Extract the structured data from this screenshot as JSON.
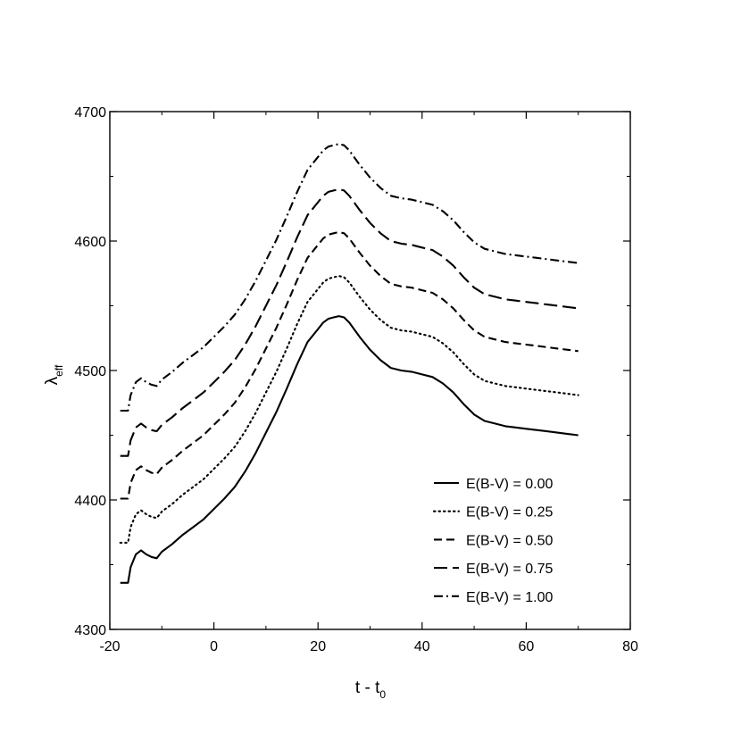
{
  "chart_data": {
    "type": "line",
    "xlabel": "t - t",
    "xlabel_sub": "0",
    "ylabel": "λ",
    "ylabel_sub": "eff",
    "xlim": [
      -20,
      80
    ],
    "ylim": [
      4300,
      4700
    ],
    "xticks": [
      -20,
      0,
      20,
      40,
      60,
      80
    ],
    "yticks": [
      4300,
      4400,
      4500,
      4600,
      4700
    ],
    "grid": false,
    "legend_position": "bottom-right",
    "base_x": [
      -18,
      -16.5,
      -16,
      -15,
      -14,
      -13,
      -12,
      -11,
      -10,
      -8,
      -6,
      -4,
      -2,
      0,
      2,
      4,
      6,
      8,
      10,
      12,
      14,
      16,
      18,
      20,
      21,
      22,
      23,
      24,
      25,
      26,
      28,
      30,
      32,
      34,
      36,
      38,
      40,
      42,
      44,
      46,
      48,
      50,
      52,
      54,
      56,
      58,
      60,
      62,
      64,
      66,
      68,
      70
    ],
    "series": [
      {
        "name": "E(B-V) = 0.00",
        "dash": "solid",
        "offset": 0,
        "values": [
          4336,
          4336,
          4348,
          4358,
          4361,
          4358,
          4356,
          4355,
          4360,
          4366,
          4373,
          4379,
          4385,
          4393,
          4401,
          4410,
          4422,
          4436,
          4452,
          4468,
          4486,
          4505,
          4522,
          4532,
          4537,
          4540,
          4541,
          4542,
          4541,
          4537,
          4526,
          4516,
          4508,
          4502,
          4500,
          4499,
          4497,
          4495,
          4490,
          4483,
          4474,
          4466,
          4461,
          4459,
          4457,
          4456,
          4455,
          4454,
          4453,
          4452,
          4451,
          4450
        ]
      },
      {
        "name": "E(B-V) = 0.25",
        "dash": "dotted",
        "offset": 31
      },
      {
        "name": "E(B-V) = 0.50",
        "dash": "dashed",
        "offset": 65
      },
      {
        "name": "E(B-V) = 0.75",
        "dash": "long-dashed",
        "offset": 98
      },
      {
        "name": "E(B-V) = 1.00",
        "dash": "dash-dot",
        "offset": 133
      }
    ]
  }
}
